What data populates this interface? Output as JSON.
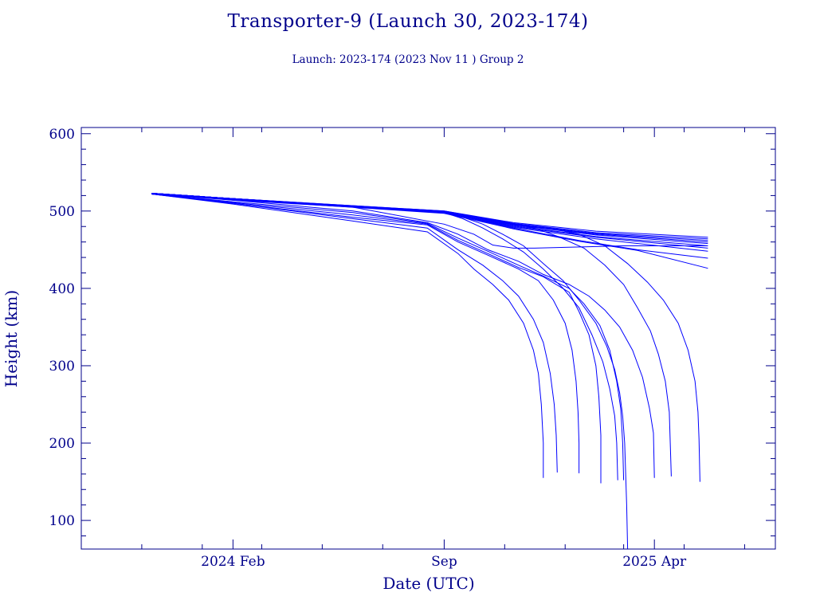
{
  "header": {
    "title": "Transporter-9 (Launch 30, 2023-174)",
    "subtitle": "Launch: 2023-174  (2023 Nov 11 )  Group 2"
  },
  "colors": {
    "axis": "#00008b",
    "series": "#0000ff",
    "background": "#ffffff"
  },
  "chart_data": {
    "type": "line",
    "title": "Transporter-9 (Launch 30, 2023-174)",
    "subtitle": "Launch: 2023-174  (2023 Nov 11 )  Group 2",
    "xlabel": "Date (UTC)",
    "ylabel": "Height (km)",
    "x_format": "date",
    "xlim": [
      "2023-09-01",
      "2025-08-01"
    ],
    "ylim": [
      63,
      608
    ],
    "grid": false,
    "x_ticks": [
      {
        "date": "2024-02-01",
        "label": "2024 Feb"
      },
      {
        "date": "2024-09-01",
        "label": "Sep"
      },
      {
        "date": "2025-04-01",
        "label": "2025 Apr"
      }
    ],
    "y_ticks": [
      100,
      200,
      300,
      400,
      500,
      600
    ],
    "series": [
      {
        "points": [
          [
            "2023-11-11",
            523
          ],
          [
            "2024-02-01",
            516
          ],
          [
            "2024-09-01",
            500
          ],
          [
            "2024-11-10",
            485
          ],
          [
            "2025-02-01",
            474
          ],
          [
            "2025-05-25",
            466
          ]
        ]
      },
      {
        "points": [
          [
            "2023-11-11",
            523
          ],
          [
            "2024-02-01",
            516
          ],
          [
            "2024-09-01",
            500
          ],
          [
            "2024-11-10",
            484
          ],
          [
            "2025-02-01",
            472
          ],
          [
            "2025-05-25",
            464
          ]
        ]
      },
      {
        "points": [
          [
            "2023-11-11",
            523
          ],
          [
            "2024-02-01",
            516
          ],
          [
            "2024-09-01",
            499
          ],
          [
            "2024-11-10",
            483
          ],
          [
            "2025-02-01",
            471
          ],
          [
            "2025-05-25",
            462
          ]
        ]
      },
      {
        "points": [
          [
            "2023-11-11",
            523
          ],
          [
            "2024-02-01",
            516
          ],
          [
            "2024-09-01",
            499
          ],
          [
            "2024-11-10",
            482
          ],
          [
            "2025-02-01",
            470
          ],
          [
            "2025-05-25",
            460
          ]
        ]
      },
      {
        "points": [
          [
            "2023-11-11",
            523
          ],
          [
            "2024-02-01",
            516
          ],
          [
            "2024-09-01",
            499
          ],
          [
            "2024-11-10",
            482
          ],
          [
            "2025-02-01",
            469
          ],
          [
            "2025-05-25",
            458
          ]
        ]
      },
      {
        "points": [
          [
            "2023-11-11",
            523
          ],
          [
            "2024-02-01",
            516
          ],
          [
            "2024-09-01",
            498
          ],
          [
            "2024-11-10",
            481
          ],
          [
            "2025-02-01",
            467
          ],
          [
            "2025-05-25",
            455
          ]
        ]
      },
      {
        "points": [
          [
            "2023-11-11",
            523
          ],
          [
            "2024-02-01",
            516
          ],
          [
            "2024-09-01",
            498
          ],
          [
            "2024-11-10",
            480
          ],
          [
            "2025-02-01",
            466
          ],
          [
            "2025-05-25",
            452
          ]
        ]
      },
      {
        "points": [
          [
            "2023-11-11",
            523
          ],
          [
            "2024-02-01",
            516
          ],
          [
            "2024-09-01",
            498
          ],
          [
            "2024-11-10",
            479
          ],
          [
            "2025-02-01",
            464
          ],
          [
            "2025-05-25",
            448
          ]
        ]
      },
      {
        "points": [
          [
            "2023-11-11",
            523
          ],
          [
            "2024-02-01",
            515
          ],
          [
            "2024-09-01",
            498
          ],
          [
            "2024-11-10",
            478
          ],
          [
            "2025-01-15",
            462
          ],
          [
            "2025-03-15",
            450
          ],
          [
            "2025-05-25",
            439
          ]
        ]
      },
      {
        "points": [
          [
            "2023-11-11",
            523
          ],
          [
            "2024-02-01",
            515
          ],
          [
            "2024-09-01",
            497
          ],
          [
            "2024-11-10",
            477
          ],
          [
            "2025-01-15",
            461
          ],
          [
            "2025-03-15",
            449
          ],
          [
            "2025-05-25",
            426
          ]
        ]
      },
      {
        "points": [
          [
            "2023-11-11",
            522
          ],
          [
            "2024-02-01",
            514
          ],
          [
            "2024-06-01",
            505
          ],
          [
            "2024-09-01",
            483
          ],
          [
            "2024-10-01",
            470
          ],
          [
            "2024-10-20",
            456
          ],
          [
            "2024-11-10",
            452
          ],
          [
            "2024-12-01",
            452
          ],
          [
            "2025-01-01",
            453
          ],
          [
            "2025-03-01",
            455
          ],
          [
            "2025-04-15",
            455
          ],
          [
            "2025-05-25",
            455
          ]
        ]
      },
      {
        "points": [
          [
            "2023-11-11",
            523
          ],
          [
            "2024-02-01",
            514
          ],
          [
            "2024-06-01",
            500
          ],
          [
            "2024-08-15",
            485
          ],
          [
            "2024-09-15",
            470
          ],
          [
            "2024-10-15",
            450
          ],
          [
            "2024-11-15",
            435
          ],
          [
            "2024-12-10",
            418
          ],
          [
            "2025-01-05",
            405
          ],
          [
            "2025-01-25",
            390
          ],
          [
            "2025-02-10",
            372
          ],
          [
            "2025-02-25",
            350
          ],
          [
            "2025-03-10",
            320
          ],
          [
            "2025-03-20",
            285
          ],
          [
            "2025-03-27",
            245
          ],
          [
            "2025-03-31",
            213
          ],
          [
            "2025-04-01",
            155
          ]
        ]
      },
      {
        "points": [
          [
            "2023-11-11",
            522
          ],
          [
            "2024-02-01",
            512
          ],
          [
            "2024-06-01",
            498
          ],
          [
            "2024-08-15",
            484
          ],
          [
            "2024-09-15",
            465
          ],
          [
            "2024-10-15",
            448
          ],
          [
            "2024-11-15",
            430
          ],
          [
            "2024-12-10",
            416
          ],
          [
            "2025-01-05",
            400
          ],
          [
            "2025-01-20",
            380
          ],
          [
            "2025-02-05",
            352
          ],
          [
            "2025-02-15",
            320
          ],
          [
            "2025-02-22",
            280
          ],
          [
            "2025-02-26",
            245
          ],
          [
            "2025-02-28",
            200
          ],
          [
            "2025-03-01",
            152
          ]
        ]
      },
      {
        "points": [
          [
            "2023-11-11",
            522
          ],
          [
            "2024-02-01",
            511
          ],
          [
            "2024-06-01",
            495
          ],
          [
            "2024-08-15",
            483
          ],
          [
            "2024-09-15",
            462
          ],
          [
            "2024-10-15",
            445
          ],
          [
            "2024-11-15",
            427
          ],
          [
            "2024-12-10",
            415
          ],
          [
            "2025-01-05",
            395
          ],
          [
            "2025-01-15",
            370
          ],
          [
            "2025-01-25",
            340
          ],
          [
            "2025-02-01",
            300
          ],
          [
            "2025-02-04",
            260
          ],
          [
            "2025-02-06",
            210
          ],
          [
            "2025-02-06",
            148
          ]
        ]
      },
      {
        "points": [
          [
            "2023-11-11",
            522
          ],
          [
            "2024-02-01",
            510
          ],
          [
            "2024-06-01",
            492
          ],
          [
            "2024-08-15",
            482
          ],
          [
            "2024-09-15",
            460
          ],
          [
            "2024-10-15",
            443
          ],
          [
            "2024-11-15",
            425
          ],
          [
            "2024-12-05",
            410
          ],
          [
            "2024-12-20",
            385
          ],
          [
            "2025-01-01",
            355
          ],
          [
            "2025-01-08",
            320
          ],
          [
            "2025-01-12",
            280
          ],
          [
            "2025-01-14",
            240
          ],
          [
            "2025-01-15",
            200
          ],
          [
            "2025-01-15",
            161
          ]
        ]
      },
      {
        "points": [
          [
            "2023-11-11",
            522
          ],
          [
            "2024-02-01",
            510
          ],
          [
            "2024-06-01",
            490
          ],
          [
            "2024-08-15",
            478
          ],
          [
            "2024-09-15",
            450
          ],
          [
            "2024-10-10",
            430
          ],
          [
            "2024-10-30",
            410
          ],
          [
            "2024-11-15",
            390
          ],
          [
            "2024-11-30",
            360
          ],
          [
            "2024-12-10",
            330
          ],
          [
            "2024-12-17",
            290
          ],
          [
            "2024-12-21",
            250
          ],
          [
            "2024-12-23",
            210
          ],
          [
            "2024-12-24",
            162
          ]
        ]
      },
      {
        "points": [
          [
            "2023-11-11",
            522
          ],
          [
            "2024-02-01",
            509
          ],
          [
            "2024-06-01",
            487
          ],
          [
            "2024-08-15",
            473
          ],
          [
            "2024-09-15",
            445
          ],
          [
            "2024-10-01",
            425
          ],
          [
            "2024-10-20",
            405
          ],
          [
            "2024-11-05",
            385
          ],
          [
            "2024-11-20",
            355
          ],
          [
            "2024-11-30",
            320
          ],
          [
            "2024-12-05",
            290
          ],
          [
            "2024-12-08",
            250
          ],
          [
            "2024-12-10",
            200
          ],
          [
            "2024-12-10",
            155
          ]
        ]
      },
      {
        "points": [
          [
            "2023-11-11",
            523
          ],
          [
            "2024-02-01",
            516
          ],
          [
            "2024-09-01",
            498
          ],
          [
            "2024-09-20",
            490
          ],
          [
            "2024-10-10",
            478
          ],
          [
            "2024-10-30",
            464
          ],
          [
            "2024-11-20",
            447
          ],
          [
            "2024-12-10",
            425
          ],
          [
            "2024-12-30",
            400
          ],
          [
            "2025-01-15",
            375
          ],
          [
            "2025-01-28",
            340
          ],
          [
            "2025-02-08",
            305
          ],
          [
            "2025-02-15",
            270
          ],
          [
            "2025-02-20",
            235
          ],
          [
            "2025-02-22",
            200
          ],
          [
            "2025-02-23",
            152
          ]
        ]
      },
      {
        "points": [
          [
            "2023-11-11",
            523
          ],
          [
            "2024-02-01",
            516
          ],
          [
            "2024-09-01",
            498
          ],
          [
            "2024-09-20",
            492
          ],
          [
            "2024-10-10",
            483
          ],
          [
            "2024-10-30",
            470
          ],
          [
            "2024-11-20",
            455
          ],
          [
            "2024-12-10",
            432
          ],
          [
            "2024-12-30",
            410
          ],
          [
            "2025-01-15",
            385
          ],
          [
            "2025-02-01",
            355
          ],
          [
            "2025-02-12",
            325
          ],
          [
            "2025-02-20",
            295
          ],
          [
            "2025-02-25",
            265
          ],
          [
            "2025-02-28",
            235
          ],
          [
            "2025-03-02",
            200
          ],
          [
            "2025-03-04",
            120
          ],
          [
            "2025-03-05",
            63
          ]
        ]
      },
      {
        "points": [
          [
            "2023-11-11",
            523
          ],
          [
            "2024-02-01",
            516
          ],
          [
            "2024-09-01",
            499
          ],
          [
            "2024-11-10",
            483
          ],
          [
            "2024-12-01",
            478
          ],
          [
            "2024-12-25",
            467
          ],
          [
            "2025-01-20",
            452
          ],
          [
            "2025-02-10",
            430
          ],
          [
            "2025-03-01",
            405
          ],
          [
            "2025-03-15",
            375
          ],
          [
            "2025-03-28",
            345
          ],
          [
            "2025-04-05",
            315
          ],
          [
            "2025-04-12",
            280
          ],
          [
            "2025-04-16",
            240
          ],
          [
            "2025-04-17",
            200
          ],
          [
            "2025-04-18",
            157
          ]
        ]
      },
      {
        "points": [
          [
            "2023-11-11",
            523
          ],
          [
            "2024-02-01",
            516
          ],
          [
            "2024-09-01",
            499
          ],
          [
            "2024-11-10",
            483
          ],
          [
            "2024-12-15",
            478
          ],
          [
            "2025-01-15",
            470
          ],
          [
            "2025-02-10",
            455
          ],
          [
            "2025-03-05",
            432
          ],
          [
            "2025-03-25",
            408
          ],
          [
            "2025-04-10",
            385
          ],
          [
            "2025-04-25",
            355
          ],
          [
            "2025-05-05",
            320
          ],
          [
            "2025-05-12",
            280
          ],
          [
            "2025-05-15",
            240
          ],
          [
            "2025-05-16",
            205
          ],
          [
            "2025-05-17",
            150
          ]
        ]
      }
    ]
  }
}
